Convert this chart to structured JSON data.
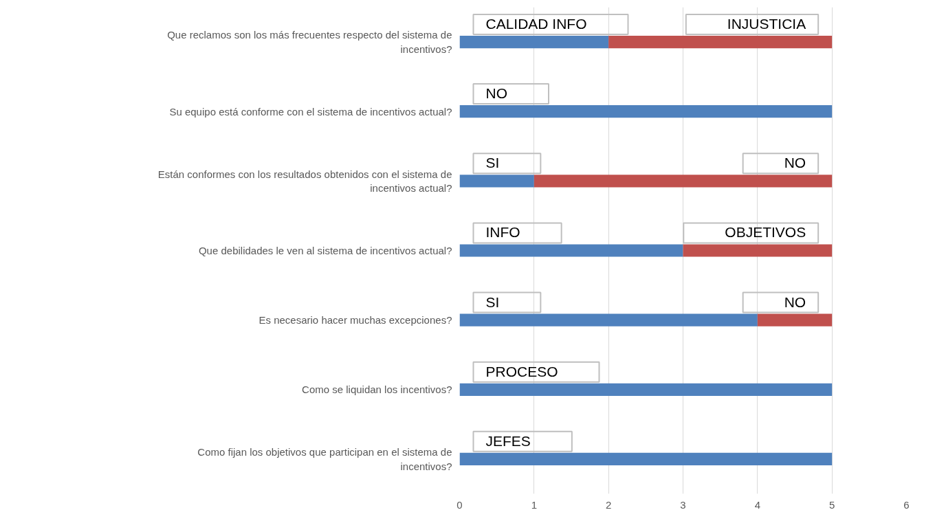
{
  "chart_data": {
    "type": "bar",
    "orientation": "horizontal",
    "stacked": true,
    "categories": [
      "Que reclamos son los más frecuentes respecto del sistema de incentivos?",
      "Su equipo está conforme con el sistema de incentivos actual?",
      "Están conformes con los resultados obtenidos con el sistema de incentivos actual?",
      "Que debilidades le ven al sistema de incentivos actual?",
      "Es necesario hacer muchas excepciones?",
      "Como se liquidan los incentivos?",
      "Como fijan los objetivos que participan en el sistema de incentivos?"
    ],
    "series": [
      {
        "color": "#4f81bd",
        "values": [
          2,
          5,
          1,
          3,
          4,
          5,
          5
        ],
        "value_labels": [
          "CALIDAD INFO",
          "NO",
          "SI",
          "INFO",
          "SI",
          "PROCESO",
          "JEFES"
        ]
      },
      {
        "color": "#c0504d",
        "values": [
          3,
          0,
          4,
          2,
          1,
          0,
          0
        ],
        "value_labels": [
          "INJUSTICIA",
          null,
          "NO",
          "OBJETIVOS",
          "NO",
          null,
          null
        ]
      }
    ],
    "xlim": [
      0,
      6
    ],
    "xticks": [
      0,
      1,
      2,
      3,
      4,
      5,
      6
    ],
    "grid": "x"
  }
}
